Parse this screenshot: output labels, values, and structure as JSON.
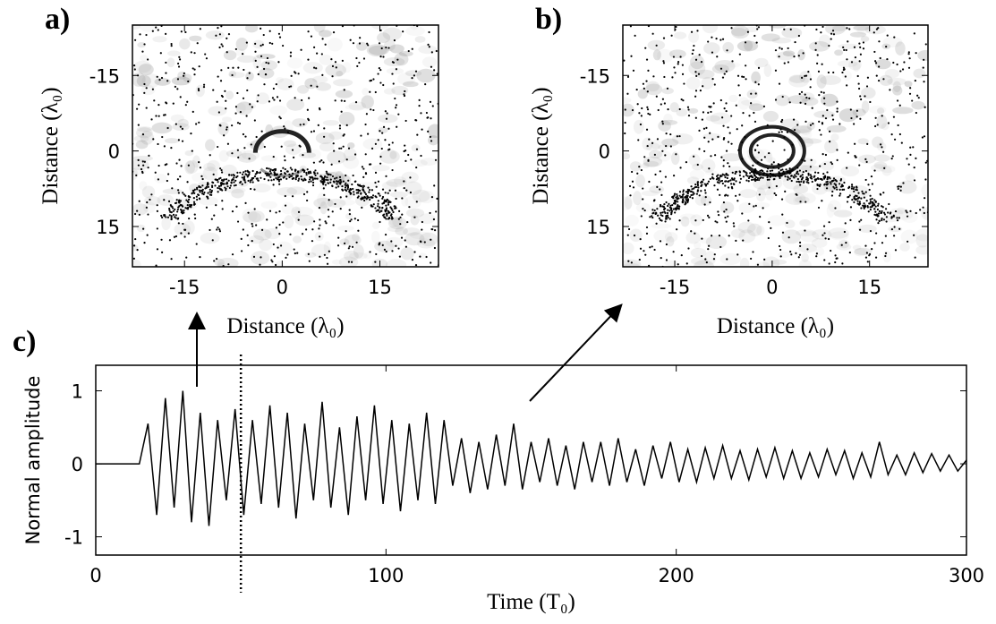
{
  "chart_data": [
    {
      "type": "image",
      "label": "a)",
      "xlabel": "Distance (λ₀)",
      "ylabel": "Distance (λ₀)",
      "xlim": [
        -23,
        24
      ],
      "ylim": [
        23,
        -25
      ],
      "xticks": [
        -15,
        0,
        15
      ],
      "yticks": [
        -15,
        0,
        15
      ]
    },
    {
      "type": "image",
      "label": "b)",
      "xlabel": "Distance (λ₀)",
      "ylabel": "Distance (λ₀)",
      "xlim": [
        -23,
        24
      ],
      "ylim": [
        23,
        -25
      ],
      "xticks": [
        -15,
        0,
        15
      ],
      "yticks": [
        -15,
        0,
        15
      ]
    },
    {
      "type": "line",
      "label": "c)",
      "xlabel": "Time (T₀)",
      "ylabel": "Normal amplitude",
      "xlim": [
        0,
        300
      ],
      "ylim": [
        -1.25,
        1.35
      ],
      "xticks": [
        0,
        100,
        200,
        300
      ],
      "yticks": [
        -1,
        0,
        1
      ],
      "color": "#000000",
      "vline": 50,
      "x": [
        0,
        15,
        18,
        21,
        24,
        27,
        30,
        33,
        36,
        39,
        42,
        45,
        48,
        51,
        54,
        57,
        60,
        63,
        66,
        69,
        72,
        75,
        78,
        81,
        84,
        87,
        90,
        93,
        96,
        99,
        102,
        105,
        108,
        111,
        114,
        117,
        120,
        123,
        126,
        129,
        132,
        135,
        138,
        141,
        144,
        147,
        150,
        153,
        156,
        159,
        162,
        165,
        168,
        171,
        174,
        177,
        180,
        183,
        186,
        189,
        192,
        195,
        198,
        201,
        204,
        207,
        210,
        213,
        216,
        219,
        222,
        225,
        228,
        231,
        234,
        237,
        240,
        243,
        246,
        249,
        252,
        255,
        258,
        261,
        264,
        267,
        270,
        273,
        276,
        279,
        282,
        285,
        288,
        291,
        294,
        297,
        300
      ],
      "values": [
        0,
        0,
        0.55,
        -0.7,
        0.9,
        -0.6,
        1.0,
        -0.8,
        0.7,
        -0.85,
        0.6,
        -0.5,
        0.75,
        -0.7,
        0.6,
        -0.55,
        0.8,
        -0.6,
        0.7,
        -0.75,
        0.55,
        -0.5,
        0.85,
        -0.6,
        0.5,
        -0.7,
        0.65,
        -0.5,
        0.8,
        -0.55,
        0.6,
        -0.65,
        0.55,
        -0.5,
        0.7,
        -0.55,
        0.6,
        -0.3,
        0.35,
        -0.4,
        0.3,
        -0.35,
        0.4,
        -0.3,
        0.55,
        -0.35,
        0.3,
        -0.25,
        0.35,
        -0.3,
        0.25,
        -0.35,
        0.3,
        -0.25,
        0.3,
        -0.3,
        0.35,
        -0.25,
        0.2,
        -0.3,
        0.25,
        -0.2,
        0.3,
        -0.25,
        0.2,
        -0.25,
        0.22,
        -0.2,
        0.25,
        -0.2,
        0.18,
        -0.22,
        0.2,
        -0.18,
        0.22,
        -0.2,
        0.18,
        -0.2,
        0.15,
        -0.18,
        0.2,
        -0.15,
        0.18,
        -0.2,
        0.15,
        -0.18,
        0.3,
        -0.15,
        0.12,
        -0.15,
        0.15,
        -0.12,
        0.14,
        -0.1,
        0.12,
        -0.1,
        0.05
      ]
    }
  ]
}
